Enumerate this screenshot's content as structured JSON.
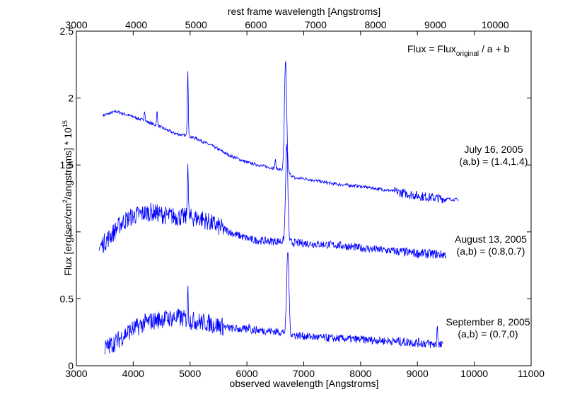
{
  "chart_data": {
    "type": "line",
    "title": "",
    "xlabel": "observed wavelength [Angstroms]",
    "top_xlabel": "rest frame wavelength [Angstroms]",
    "ylabel_main": "Flux [erg/sec/cm",
    "ylabel_sup1": "2",
    "ylabel_mid": "/angstroms] * 10",
    "ylabel_sup2": "15",
    "xlim": [
      3000,
      11000
    ],
    "ylim": [
      0,
      2.5
    ],
    "top_xlim": [
      3000,
      10600
    ],
    "x_ticks": [
      "3000",
      "4000",
      "5000",
      "6000",
      "7000",
      "8000",
      "9000",
      "10000",
      "11000"
    ],
    "y_ticks": [
      "0",
      "0.5",
      "1",
      "1.5",
      "2",
      "2.5"
    ],
    "top_x_ticks": [
      "3000",
      "4000",
      "5000",
      "6000",
      "7000",
      "8000",
      "9000",
      "10000"
    ],
    "grid": false,
    "line_color": "#0000ff",
    "formula": {
      "prefix": "Flux = Flux",
      "subscript": "original",
      "suffix": " / a + b"
    },
    "series": [
      {
        "name": "July 16, 2005",
        "params": "(a,b) = (1.4,1.4)",
        "x_range": [
          3470,
          9720
        ],
        "anchors": [
          [
            3470,
            1.87
          ],
          [
            3700,
            1.9
          ],
          [
            4000,
            1.86
          ],
          [
            4200,
            1.83
          ],
          [
            4500,
            1.78
          ],
          [
            4700,
            1.74
          ],
          [
            4900,
            1.72
          ],
          [
            5100,
            1.7
          ],
          [
            5400,
            1.64
          ],
          [
            5700,
            1.57
          ],
          [
            6000,
            1.52
          ],
          [
            6300,
            1.49
          ],
          [
            6550,
            1.47
          ],
          [
            6700,
            1.45
          ],
          [
            6850,
            1.4
          ],
          [
            7000,
            1.4
          ],
          [
            7500,
            1.36
          ],
          [
            8000,
            1.34
          ],
          [
            8500,
            1.31
          ],
          [
            9000,
            1.27
          ],
          [
            9400,
            1.25
          ],
          [
            9720,
            1.24
          ]
        ],
        "lines": [
          [
            4200,
            0.08
          ],
          [
            4420,
            0.11
          ],
          [
            4960,
            0.5
          ],
          [
            6680,
            0.82
          ],
          [
            6500,
            0.06
          ]
        ]
      },
      {
        "name": "August 13, 2005",
        "params": "(a,b) = (0.8,0.7)",
        "x_range": [
          3400,
          9500
        ],
        "anchors": [
          [
            3400,
            0.88
          ],
          [
            3600,
            0.97
          ],
          [
            3800,
            1.07
          ],
          [
            4000,
            1.12
          ],
          [
            4300,
            1.15
          ],
          [
            4600,
            1.12
          ],
          [
            4900,
            1.11
          ],
          [
            5200,
            1.1
          ],
          [
            5500,
            1.04
          ],
          [
            5800,
            0.98
          ],
          [
            6100,
            0.94
          ],
          [
            6400,
            0.93
          ],
          [
            6650,
            0.93
          ],
          [
            6800,
            0.92
          ],
          [
            7200,
            0.91
          ],
          [
            7600,
            0.9
          ],
          [
            8000,
            0.88
          ],
          [
            8500,
            0.86
          ],
          [
            9000,
            0.84
          ],
          [
            9500,
            0.83
          ]
        ],
        "lines": [
          [
            4960,
            0.44
          ],
          [
            6700,
            0.72
          ]
        ]
      },
      {
        "name": "September 8, 2005",
        "params": "(a,b) = (0.7,0)",
        "x_range": [
          3500,
          9450
        ],
        "anchors": [
          [
            3500,
            0.13
          ],
          [
            3700,
            0.18
          ],
          [
            3900,
            0.25
          ],
          [
            4200,
            0.32
          ],
          [
            4500,
            0.35
          ],
          [
            4800,
            0.36
          ],
          [
            5000,
            0.34
          ],
          [
            5300,
            0.32
          ],
          [
            5700,
            0.28
          ],
          [
            6000,
            0.27
          ],
          [
            6400,
            0.26
          ],
          [
            6650,
            0.25
          ],
          [
            6800,
            0.23
          ],
          [
            7300,
            0.21
          ],
          [
            7800,
            0.2
          ],
          [
            8300,
            0.19
          ],
          [
            8700,
            0.18
          ],
          [
            9100,
            0.17
          ],
          [
            9450,
            0.15
          ]
        ],
        "lines": [
          [
            4960,
            0.22
          ],
          [
            6040,
            0.05
          ],
          [
            6720,
            0.62
          ],
          [
            9350,
            0.15
          ]
        ]
      }
    ]
  }
}
